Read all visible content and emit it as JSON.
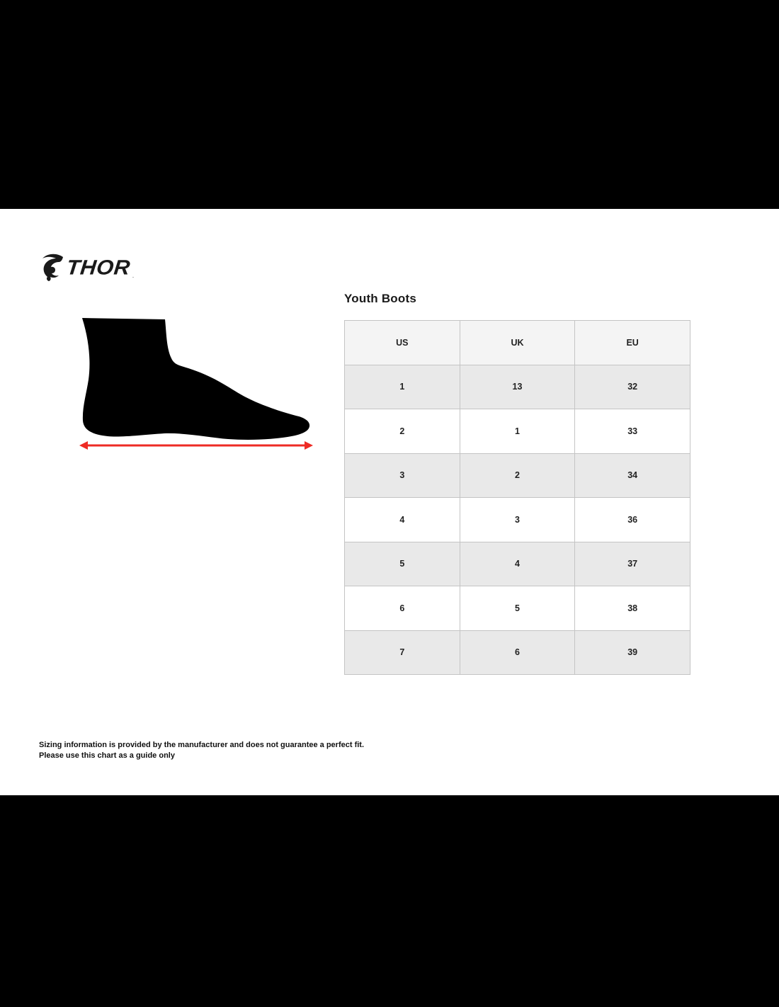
{
  "logo": {
    "brand": "THOR",
    "trademark": ".",
    "icon": "goat-head-icon"
  },
  "title": "Youth Boots",
  "chart_data": {
    "type": "table",
    "title": "Youth Boots",
    "columns": [
      "US",
      "UK",
      "EU"
    ],
    "rows": [
      [
        "1",
        "13",
        "32"
      ],
      [
        "2",
        "1",
        "33"
      ],
      [
        "3",
        "2",
        "34"
      ],
      [
        "4",
        "3",
        "36"
      ],
      [
        "5",
        "4",
        "37"
      ],
      [
        "6",
        "5",
        "38"
      ],
      [
        "7",
        "6",
        "39"
      ]
    ],
    "layout_hints": {
      "header_background": "#f4f4f4",
      "alt_row_background": "#e9e9e9",
      "border_color": "#c4c4c4",
      "zebra_striping": true
    }
  },
  "illustration": {
    "name": "foot-silhouette",
    "measurement_arrow_icon": "double-headed-arrow-icon",
    "arrow_color": "#ee2b24",
    "silhouette_color": "#000000"
  },
  "disclaimer": {
    "line1": "Sizing information is provided by the manufacturer and does not guarantee a perfect fit.",
    "line2": "Please use this chart as a guide only"
  },
  "colors": {
    "letterbox_bars": "#000000",
    "page_background": "#ffffff",
    "text": "#1a1a1a"
  }
}
